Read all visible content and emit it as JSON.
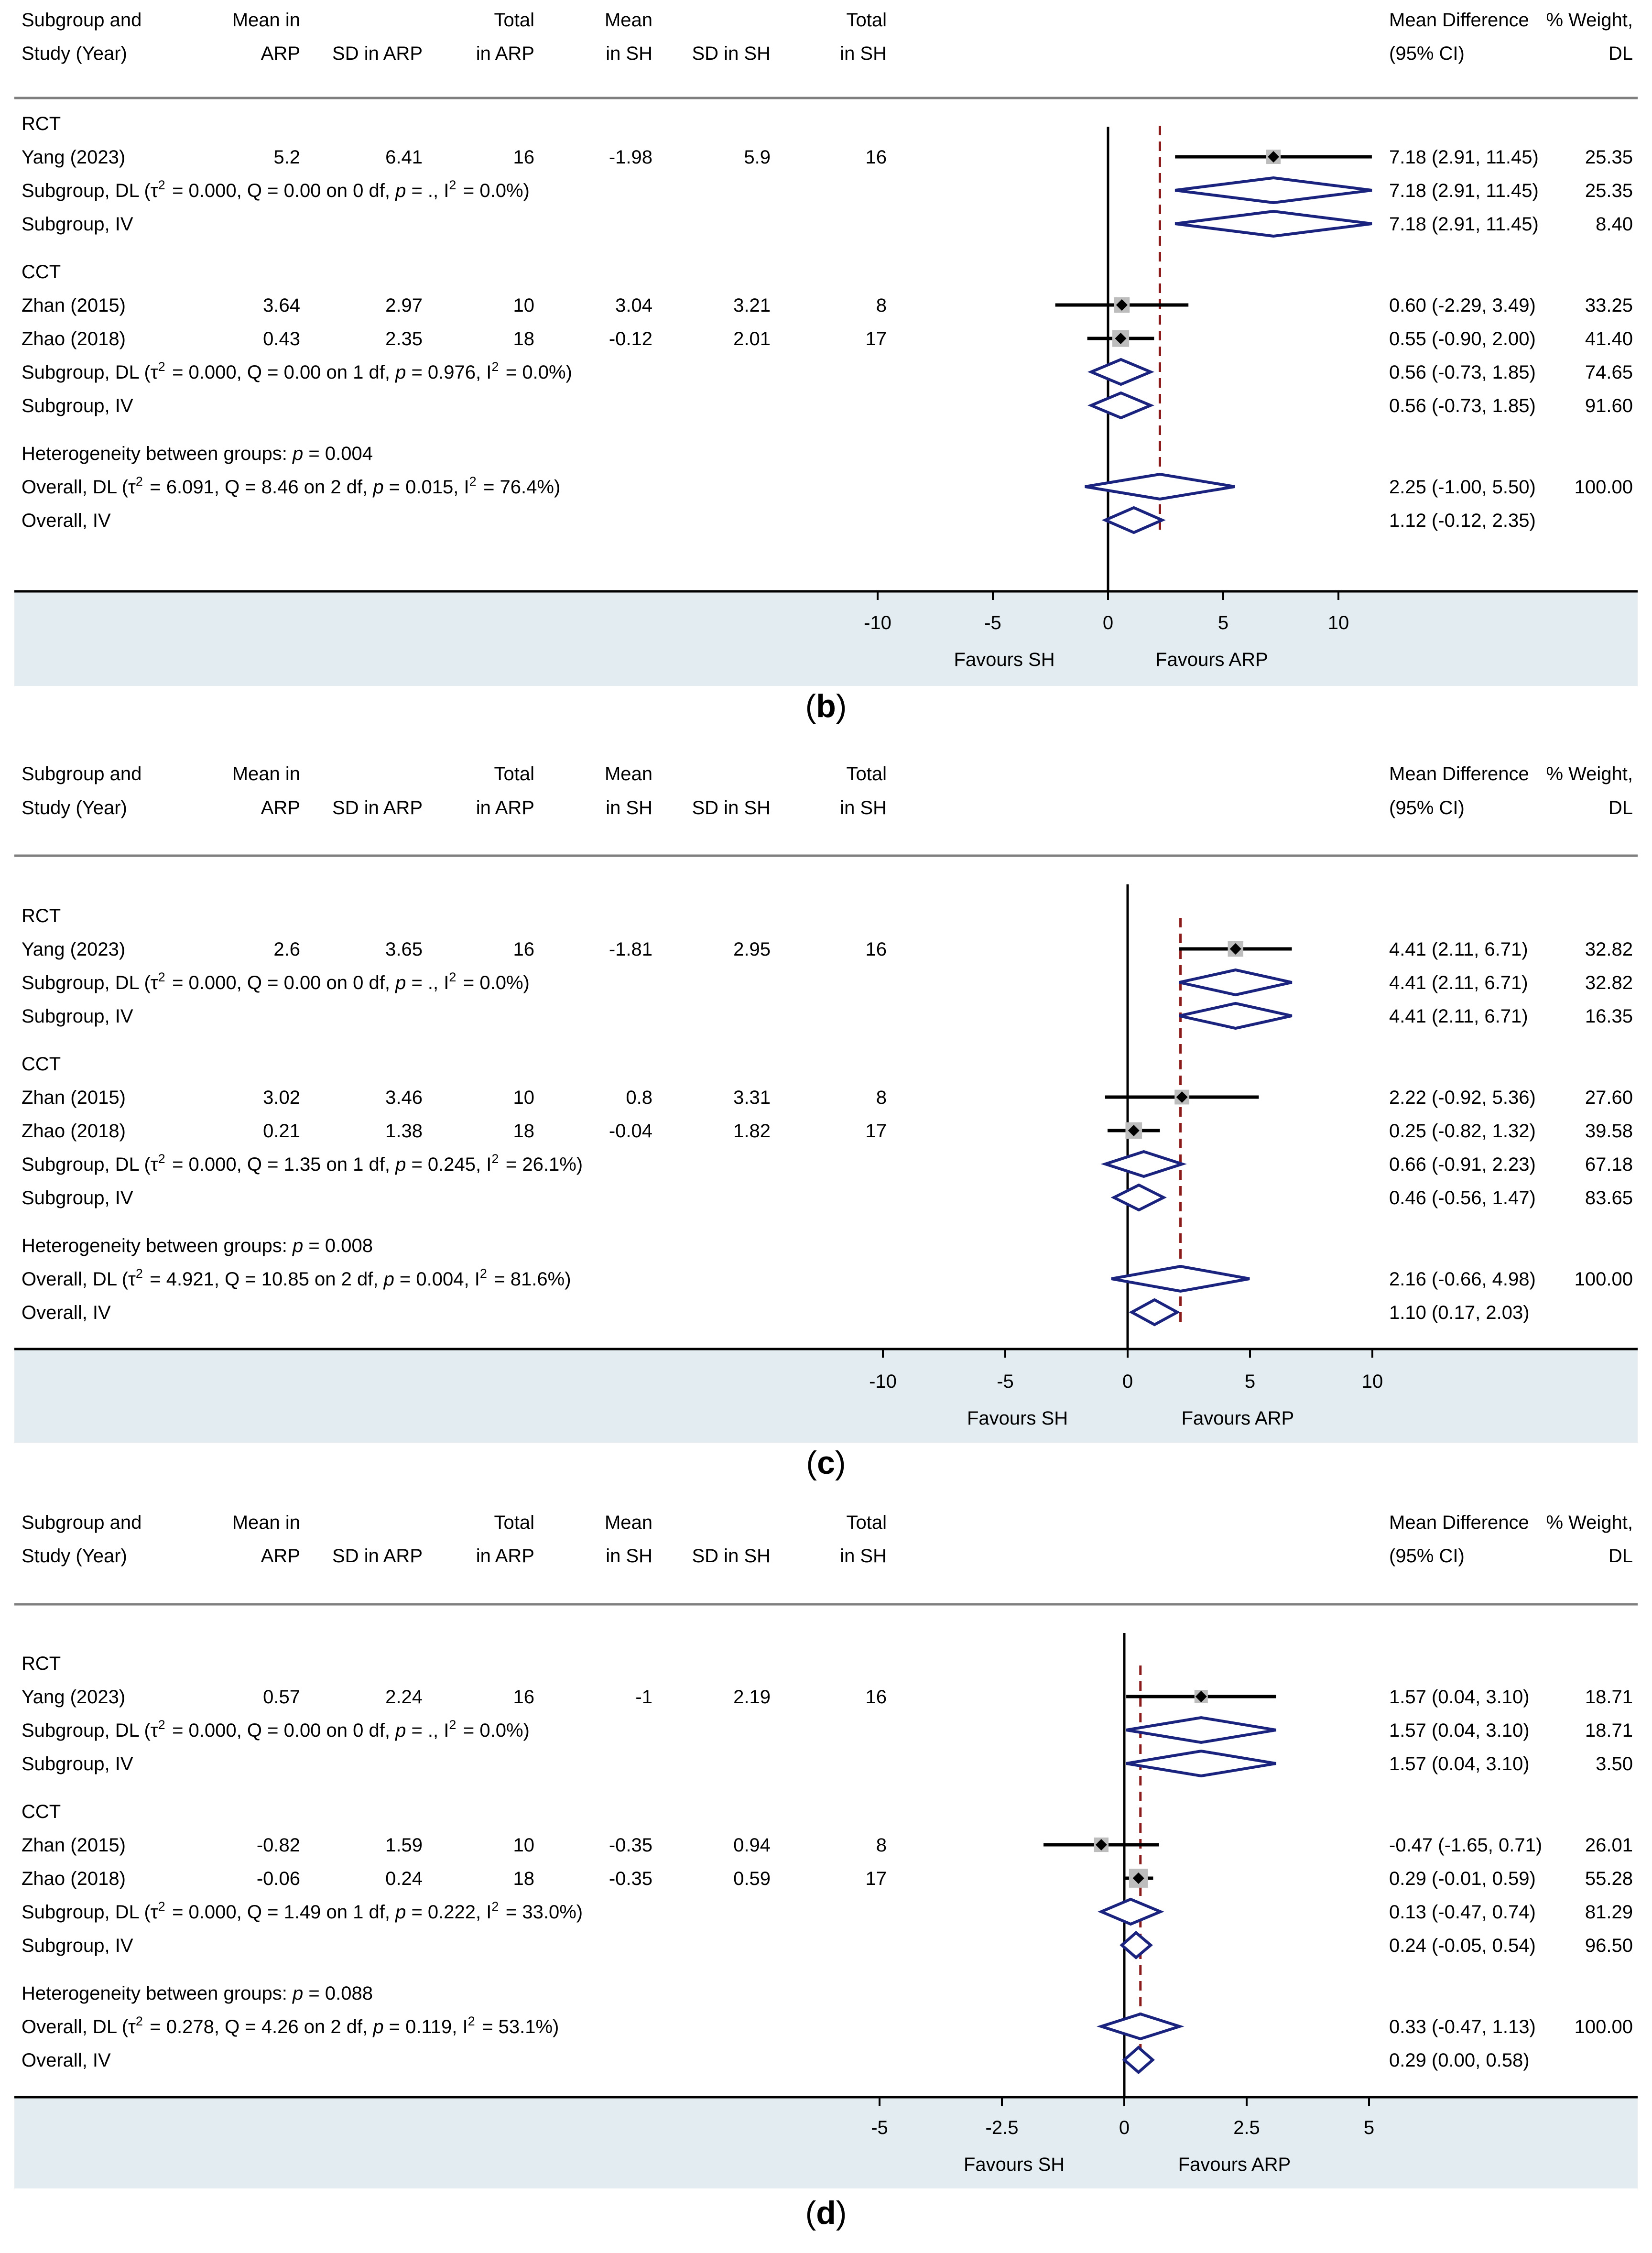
{
  "chart_data": [
    {
      "type": "forest",
      "panel_label": "b",
      "columns": [
        "Subgroup and|Study (Year)",
        "Mean in|ARP",
        "|SD in ARP",
        "Total|in ARP",
        "Mean|in SH",
        "|SD in SH",
        "Total|in SH",
        "Mean Difference|(95% CI)",
        "% Weight,|DL"
      ],
      "rows": [
        {
          "kind": "group",
          "label": "RCT"
        },
        {
          "kind": "study",
          "label": "Yang (2023)",
          "mean_arp": "5.2",
          "sd_arp": "6.41",
          "n_arp": "16",
          "mean_sh": "-1.98",
          "sd_sh": "5.9",
          "n_sh": "16",
          "md": 7.18,
          "lo": 2.91,
          "hi": 11.45,
          "ci_text": "7.18 (2.91, 11.45)",
          "weight": "25.35"
        },
        {
          "kind": "pooled",
          "label": "Subgroup, DL (τ² = 0.000, Q = 0.00 on 0 df, p = ., I² = 0.0%)",
          "md": 7.18,
          "lo": 2.91,
          "hi": 11.45,
          "ci_text": "7.18 (2.91, 11.45)",
          "weight": "25.35"
        },
        {
          "kind": "pooled",
          "label": "Subgroup, IV",
          "md": 7.18,
          "lo": 2.91,
          "hi": 11.45,
          "ci_text": "7.18 (2.91, 11.45)",
          "weight": "8.40"
        },
        {
          "kind": "gap"
        },
        {
          "kind": "group",
          "label": "CCT"
        },
        {
          "kind": "study",
          "label": "Zhan (2015)",
          "mean_arp": "3.64",
          "sd_arp": "2.97",
          "n_arp": "10",
          "mean_sh": "3.04",
          "sd_sh": "3.21",
          "n_sh": "8",
          "md": 0.6,
          "lo": -2.29,
          "hi": 3.49,
          "ci_text": "0.60 (-2.29, 3.49)",
          "weight": "33.25"
        },
        {
          "kind": "study",
          "label": "Zhao (2018)",
          "mean_arp": "0.43",
          "sd_arp": "2.35",
          "n_arp": "18",
          "mean_sh": "-0.12",
          "sd_sh": "2.01",
          "n_sh": "17",
          "md": 0.55,
          "lo": -0.9,
          "hi": 2.0,
          "ci_text": "0.55 (-0.90, 2.00)",
          "weight": "41.40"
        },
        {
          "kind": "pooled",
          "label": "Subgroup, DL (τ² = 0.000, Q = 0.00 on 1 df, p = 0.976, I² = 0.0%)",
          "md": 0.56,
          "lo": -0.73,
          "hi": 1.85,
          "ci_text": "0.56 (-0.73, 1.85)",
          "weight": "74.65"
        },
        {
          "kind": "pooled",
          "label": "Subgroup, IV",
          "md": 0.56,
          "lo": -0.73,
          "hi": 1.85,
          "ci_text": "0.56 (-0.73, 1.85)",
          "weight": "91.60"
        },
        {
          "kind": "gap"
        },
        {
          "kind": "note",
          "label": "Heterogeneity between groups: p = 0.004"
        },
        {
          "kind": "pooled",
          "label": "Overall, DL (τ² = 6.091, Q = 8.46 on 2 df, p = 0.015, I² = 76.4%)",
          "md": 2.25,
          "lo": -1.0,
          "hi": 5.5,
          "ci_text": "2.25 (-1.00, 5.50)",
          "weight": "100.00"
        },
        {
          "kind": "pooled",
          "label": "Overall, IV",
          "md": 1.12,
          "lo": -0.12,
          "hi": 2.35,
          "ci_text": "1.12 (-0.12, 2.35)",
          "weight": ""
        }
      ],
      "x_ticks": [
        -10,
        -5,
        0,
        5,
        10
      ],
      "x_tick_labels": [
        "-10",
        "-5",
        "0",
        "5",
        "10"
      ],
      "xlim": [
        -10,
        10
      ],
      "reference_line": 2.25,
      "favours_left": "Favours SH",
      "favours_right": "Favours ARP"
    },
    {
      "type": "forest",
      "panel_label": "c",
      "columns": [
        "Subgroup and|Study (Year)",
        "Mean in|ARP",
        "|SD in ARP",
        "Total|in ARP",
        "Mean|in SH",
        "|SD in SH",
        "Total|in SH",
        "Mean Difference|(95% CI)",
        "% Weight,|DL"
      ],
      "rows": [
        {
          "kind": "group",
          "label": "RCT"
        },
        {
          "kind": "study",
          "label": "Yang (2023)",
          "mean_arp": "2.6",
          "sd_arp": "3.65",
          "n_arp": "16",
          "mean_sh": "-1.81",
          "sd_sh": "2.95",
          "n_sh": "16",
          "md": 4.41,
          "lo": 2.11,
          "hi": 6.71,
          "ci_text": "4.41 (2.11, 6.71)",
          "weight": "32.82"
        },
        {
          "kind": "pooled",
          "label": "Subgroup, DL (τ² = 0.000, Q = 0.00 on 0 df, p = ., I² = 0.0%)",
          "md": 4.41,
          "lo": 2.11,
          "hi": 6.71,
          "ci_text": "4.41 (2.11, 6.71)",
          "weight": "32.82"
        },
        {
          "kind": "pooled",
          "label": "Subgroup, IV",
          "md": 4.41,
          "lo": 2.11,
          "hi": 6.71,
          "ci_text": "4.41 (2.11, 6.71)",
          "weight": "16.35"
        },
        {
          "kind": "gap"
        },
        {
          "kind": "group",
          "label": "CCT"
        },
        {
          "kind": "study",
          "label": "Zhan (2015)",
          "mean_arp": "3.02",
          "sd_arp": "3.46",
          "n_arp": "10",
          "mean_sh": "0.8",
          "sd_sh": "3.31",
          "n_sh": "8",
          "md": 2.22,
          "lo": -0.92,
          "hi": 5.36,
          "ci_text": "2.22 (-0.92, 5.36)",
          "weight": "27.60"
        },
        {
          "kind": "study",
          "label": "Zhao (2018)",
          "mean_arp": "0.21",
          "sd_arp": "1.38",
          "n_arp": "18",
          "mean_sh": "-0.04",
          "sd_sh": "1.82",
          "n_sh": "17",
          "md": 0.25,
          "lo": -0.82,
          "hi": 1.32,
          "ci_text": "0.25 (-0.82, 1.32)",
          "weight": "39.58"
        },
        {
          "kind": "pooled",
          "label": "Subgroup, DL (τ² = 0.000, Q = 1.35 on 1 df, p = 0.245, I² = 26.1%)",
          "md": 0.66,
          "lo": -0.91,
          "hi": 2.23,
          "ci_text": "0.66 (-0.91, 2.23)",
          "weight": "67.18"
        },
        {
          "kind": "pooled",
          "label": "Subgroup, IV",
          "md": 0.46,
          "lo": -0.56,
          "hi": 1.47,
          "ci_text": "0.46 (-0.56, 1.47)",
          "weight": "83.65"
        },
        {
          "kind": "gap"
        },
        {
          "kind": "note",
          "label": "Heterogeneity between groups: p = 0.008"
        },
        {
          "kind": "pooled",
          "label": "Overall, DL (τ² = 4.921, Q = 10.85 on 2 df, p = 0.004, I² = 81.6%)",
          "md": 2.16,
          "lo": -0.66,
          "hi": 4.98,
          "ci_text": "2.16 (-0.66, 4.98)",
          "weight": "100.00"
        },
        {
          "kind": "pooled",
          "label": "Overall, IV",
          "md": 1.1,
          "lo": 0.17,
          "hi": 2.03,
          "ci_text": "1.10 (0.17, 2.03)",
          "weight": ""
        }
      ],
      "x_ticks": [
        -10,
        -5,
        0,
        5,
        10
      ],
      "x_tick_labels": [
        "-10",
        "-5",
        "0",
        "5",
        "10"
      ],
      "xlim": [
        -10,
        10
      ],
      "reference_line": 2.16,
      "favours_left": "Favours SH",
      "favours_right": "Favours ARP"
    },
    {
      "type": "forest",
      "panel_label": "d",
      "columns": [
        "Subgroup and|Study (Year)",
        "Mean in|ARP",
        "|SD in ARP",
        "Total|in ARP",
        "Mean|in SH",
        "|SD in SH",
        "Total|in SH",
        "Mean Difference|(95% CI)",
        "% Weight,|DL"
      ],
      "rows": [
        {
          "kind": "group",
          "label": "RCT"
        },
        {
          "kind": "study",
          "label": "Yang (2023)",
          "mean_arp": "0.57",
          "sd_arp": "2.24",
          "n_arp": "16",
          "mean_sh": "-1",
          "sd_sh": "2.19",
          "n_sh": "16",
          "md": 1.57,
          "lo": 0.04,
          "hi": 3.1,
          "ci_text": "1.57 (0.04, 3.10)",
          "weight": "18.71"
        },
        {
          "kind": "pooled",
          "label": "Subgroup, DL (τ² = 0.000, Q = 0.00 on 0 df, p = ., I² = 0.0%)",
          "md": 1.57,
          "lo": 0.04,
          "hi": 3.1,
          "ci_text": "1.57 (0.04, 3.10)",
          "weight": "18.71"
        },
        {
          "kind": "pooled",
          "label": "Subgroup, IV",
          "md": 1.57,
          "lo": 0.04,
          "hi": 3.1,
          "ci_text": "1.57 (0.04, 3.10)",
          "weight": "3.50"
        },
        {
          "kind": "gap"
        },
        {
          "kind": "group",
          "label": "CCT"
        },
        {
          "kind": "study",
          "label": "Zhan (2015)",
          "mean_arp": "-0.82",
          "sd_arp": "1.59",
          "n_arp": "10",
          "mean_sh": "-0.35",
          "sd_sh": "0.94",
          "n_sh": "8",
          "md": -0.47,
          "lo": -1.65,
          "hi": 0.71,
          "ci_text": "-0.47 (-1.65, 0.71)",
          "weight": "26.01"
        },
        {
          "kind": "study",
          "label": "Zhao (2018)",
          "mean_arp": "-0.06",
          "sd_arp": "0.24",
          "n_arp": "18",
          "mean_sh": "-0.35",
          "sd_sh": "0.59",
          "n_sh": "17",
          "md": 0.29,
          "lo": -0.01,
          "hi": 0.59,
          "ci_text": "0.29 (-0.01, 0.59)",
          "weight": "55.28"
        },
        {
          "kind": "pooled",
          "label": "Subgroup, DL (τ² = 0.000, Q = 1.49 on 1 df, p = 0.222, I² = 33.0%)",
          "md": 0.13,
          "lo": -0.47,
          "hi": 0.74,
          "ci_text": "0.13 (-0.47, 0.74)",
          "weight": "81.29"
        },
        {
          "kind": "pooled",
          "label": "Subgroup, IV",
          "md": 0.24,
          "lo": -0.05,
          "hi": 0.54,
          "ci_text": "0.24 (-0.05, 0.54)",
          "weight": "96.50"
        },
        {
          "kind": "gap"
        },
        {
          "kind": "note",
          "label": "Heterogeneity between groups: p = 0.088"
        },
        {
          "kind": "pooled",
          "label": "Overall, DL (τ² = 0.278, Q = 4.26 on 2 df, p = 0.119, I² = 53.1%)",
          "md": 0.33,
          "lo": -0.47,
          "hi": 1.13,
          "ci_text": "0.33 (-0.47, 1.13)",
          "weight": "100.00"
        },
        {
          "kind": "pooled",
          "label": "Overall, IV",
          "md": 0.29,
          "lo": 0.0,
          "hi": 0.58,
          "ci_text": "0.29 (0.00, 0.58)",
          "weight": ""
        }
      ],
      "x_ticks": [
        -5,
        -2.5,
        0,
        2.5,
        5
      ],
      "x_tick_labels": [
        "-5",
        "-2.5",
        "0",
        "2.5",
        "5"
      ],
      "xlim": [
        -5,
        5
      ],
      "reference_line": 0.33,
      "favours_left": "Favours SH",
      "favours_right": "Favours ARP"
    }
  ]
}
